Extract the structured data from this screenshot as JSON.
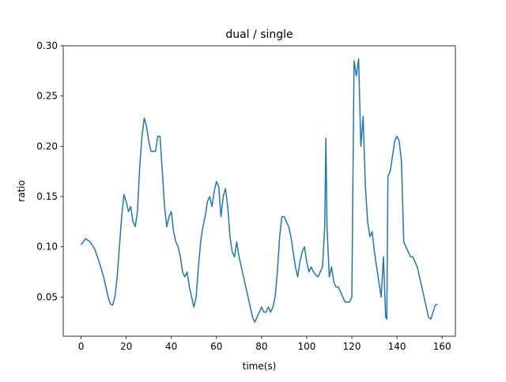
{
  "chart_data": {
    "type": "line",
    "title": "dual / single",
    "x_label": "time(s)",
    "y_label": "ratio",
    "x": [
      0,
      2,
      4,
      6,
      8,
      10,
      12,
      13,
      14,
      15,
      16,
      17,
      18,
      19,
      20,
      21,
      22,
      23,
      24,
      25,
      26,
      27,
      28,
      29,
      30,
      31,
      32,
      33,
      34,
      35,
      36,
      37,
      38,
      39,
      40,
      41,
      42,
      43,
      44,
      45,
      46,
      47,
      48,
      49,
      50,
      51,
      52,
      53,
      54,
      55,
      56,
      57,
      58,
      59,
      60,
      61,
      62,
      63,
      64,
      65,
      66,
      67,
      68,
      69,
      70,
      71,
      72,
      73,
      74,
      75,
      76,
      77,
      78,
      79,
      80,
      81,
      82,
      83,
      84,
      85,
      86,
      87,
      88,
      89,
      90,
      91,
      92,
      93,
      94,
      95,
      96,
      97,
      98,
      99,
      100,
      101,
      102,
      103,
      104,
      105,
      106,
      107,
      108,
      108.5,
      109,
      110,
      111,
      112,
      113,
      114,
      115,
      116,
      117,
      118,
      119,
      120,
      121,
      122,
      123,
      124,
      125,
      126,
      127,
      128,
      129,
      130,
      131,
      132,
      133,
      134,
      135,
      135.5,
      136,
      137,
      138,
      139,
      140,
      141,
      142,
      143,
      144,
      145,
      146,
      147,
      148,
      149,
      150,
      151,
      152,
      153,
      154,
      155,
      156,
      157,
      158
    ],
    "series": [
      {
        "name": "ratio",
        "color": "#1f77b4",
        "values": [
          0.102,
          0.108,
          0.105,
          0.098,
          0.085,
          0.07,
          0.05,
          0.043,
          0.042,
          0.05,
          0.07,
          0.1,
          0.13,
          0.152,
          0.145,
          0.135,
          0.14,
          0.125,
          0.12,
          0.135,
          0.18,
          0.21,
          0.228,
          0.22,
          0.205,
          0.195,
          0.195,
          0.195,
          0.21,
          0.21,
          0.175,
          0.14,
          0.12,
          0.13,
          0.135,
          0.115,
          0.105,
          0.1,
          0.09,
          0.075,
          0.07,
          0.075,
          0.06,
          0.05,
          0.04,
          0.05,
          0.08,
          0.105,
          0.12,
          0.13,
          0.145,
          0.15,
          0.14,
          0.155,
          0.165,
          0.16,
          0.13,
          0.15,
          0.158,
          0.14,
          0.11,
          0.095,
          0.09,
          0.105,
          0.09,
          0.08,
          0.07,
          0.06,
          0.05,
          0.04,
          0.03,
          0.025,
          0.03,
          0.035,
          0.04,
          0.035,
          0.035,
          0.04,
          0.035,
          0.04,
          0.05,
          0.075,
          0.11,
          0.13,
          0.13,
          0.125,
          0.12,
          0.11,
          0.095,
          0.08,
          0.07,
          0.085,
          0.095,
          0.1,
          0.085,
          0.075,
          0.08,
          0.075,
          0.072,
          0.07,
          0.075,
          0.08,
          0.12,
          0.208,
          0.12,
          0.07,
          0.08,
          0.065,
          0.06,
          0.06,
          0.055,
          0.05,
          0.045,
          0.045,
          0.045,
          0.05,
          0.285,
          0.27,
          0.287,
          0.2,
          0.23,
          0.16,
          0.125,
          0.11,
          0.115,
          0.095,
          0.08,
          0.065,
          0.05,
          0.09,
          0.03,
          0.028,
          0.17,
          0.175,
          0.19,
          0.205,
          0.21,
          0.205,
          0.185,
          0.105,
          0.1,
          0.095,
          0.09,
          0.09,
          0.085,
          0.08,
          0.07,
          0.06,
          0.05,
          0.04,
          0.03,
          0.028,
          0.035,
          0.042,
          0.043
        ]
      }
    ],
    "xlim": [
      -7.9,
      165.9
    ],
    "ylim": [
      0.011,
      0.3
    ],
    "xticks": [
      0,
      20,
      40,
      60,
      80,
      100,
      120,
      140,
      160
    ],
    "yticks": [
      0.05,
      {
        "value": 0.1,
        "label": "0.10"
      },
      0.15,
      {
        "value": 0.2,
        "label": "0.20"
      },
      0.25,
      {
        "value": 0.3,
        "label": "0.30"
      }
    ]
  }
}
